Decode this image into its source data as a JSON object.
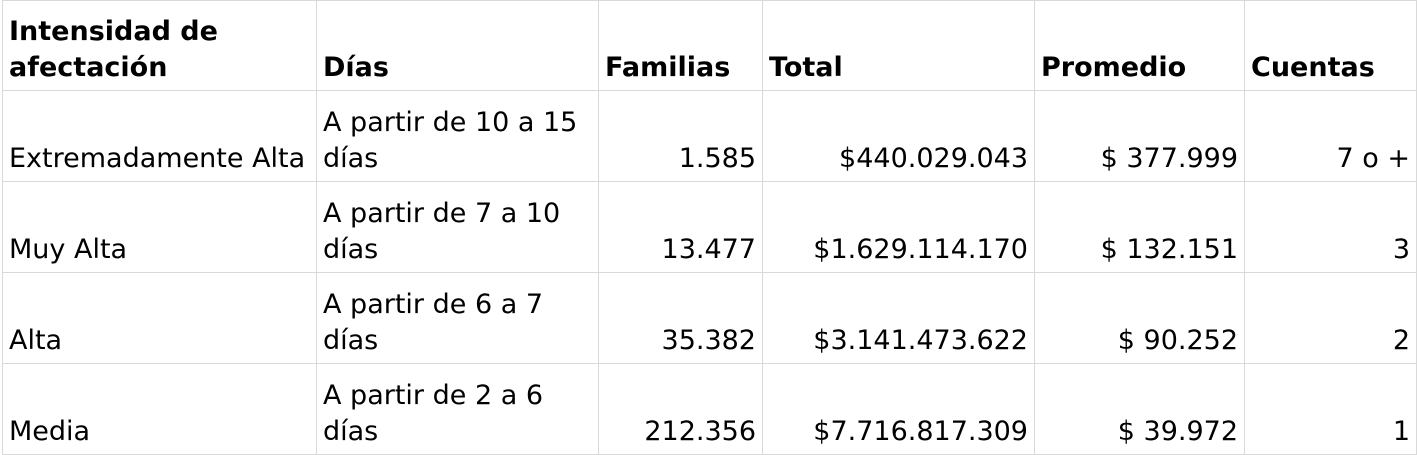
{
  "table": {
    "headers": [
      "Intensidad de afectación",
      "Días",
      "Familias",
      "Total",
      "Promedio",
      "Cuentas"
    ],
    "rows": [
      {
        "intensidad": "Extremadamente Alta",
        "dias": "A partir de 10 a 15 días",
        "familias": "1.585",
        "total": "$440.029.043",
        "promedio": "$ 377.999",
        "cuentas": "7 o +"
      },
      {
        "intensidad": "Muy Alta",
        "dias": "A partir de 7 a 10 días",
        "familias": "13.477",
        "total": "$1.629.114.170",
        "promedio": "$ 132.151",
        "cuentas": "3"
      },
      {
        "intensidad": "Alta",
        "dias": "A partir de 6 a 7 días",
        "familias": "35.382",
        "total": "$3.141.473.622",
        "promedio": "$ 90.252",
        "cuentas": "2"
      },
      {
        "intensidad": "Media",
        "dias": "A partir de 2 a 6 días",
        "familias": "212.356",
        "total": "$7.716.817.309",
        "promedio": "$ 39.972",
        "cuentas": "1"
      }
    ]
  }
}
